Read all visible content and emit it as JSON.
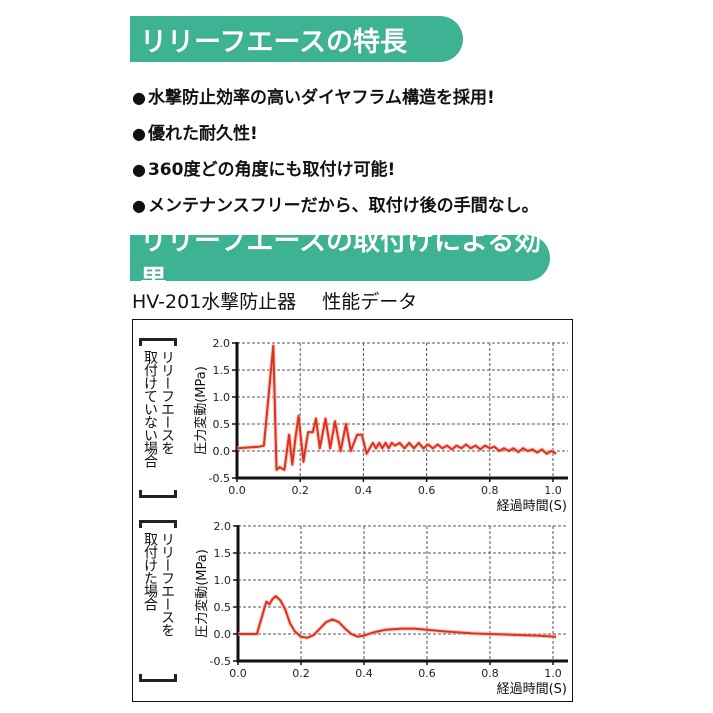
{
  "sections": {
    "features_title": "リリーフエースの特長",
    "effect_title": "リリーフエースの取付けによる効果"
  },
  "features": [
    "水撃防止効率の高いダイヤフラム構造を採用!",
    "優れた耐久性!",
    "360度どの角度にも取付け可能!",
    "メンテナンスフリーだから、取付け後の手間なし。"
  ],
  "bullet_glyph": "●",
  "subtitle": {
    "product": "HV-201水撃防止器",
    "data_label": "性能データ"
  },
  "colors": {
    "banner": "#3db394",
    "line": "#e0301e",
    "axis": "#111111",
    "grid": "#555555"
  },
  "chart_data": [
    {
      "type": "line",
      "title": "リリーフエースを取付けていない場合",
      "side_label_lines": [
        "リリーフエースを",
        "取付けていない場合"
      ],
      "xlabel": "経過時間(S)",
      "ylabel": "圧力変動(MPa)",
      "xlim": [
        0.0,
        1.0
      ],
      "ylim": [
        -0.5,
        2.0
      ],
      "xticks": [
        "0.0",
        "0.2",
        "0.4",
        "0.6",
        "0.8",
        "1.0"
      ],
      "yticks": [
        "2.0",
        "1.5",
        "1.0",
        "0.5",
        "0.0",
        "-0.5"
      ],
      "grid": true,
      "series": [
        {
          "name": "取付けていない場合",
          "x": [
            0.0,
            0.07,
            0.085,
            0.115,
            0.125,
            0.135,
            0.15,
            0.165,
            0.175,
            0.185,
            0.195,
            0.21,
            0.225,
            0.24,
            0.25,
            0.262,
            0.28,
            0.295,
            0.31,
            0.328,
            0.345,
            0.36,
            0.38,
            0.395,
            0.41,
            0.42,
            0.43,
            0.44,
            0.45,
            0.46,
            0.47,
            0.48,
            0.49,
            0.5,
            0.515,
            0.53,
            0.545,
            0.56,
            0.575,
            0.59,
            0.605,
            0.62,
            0.635,
            0.65,
            0.665,
            0.68,
            0.695,
            0.71,
            0.725,
            0.74,
            0.755,
            0.77,
            0.785,
            0.8,
            0.815,
            0.83,
            0.845,
            0.86,
            0.875,
            0.89,
            0.905,
            0.92,
            0.935,
            0.95,
            0.965,
            0.98,
            0.995,
            1.01
          ],
          "values": [
            0.05,
            0.08,
            0.1,
            1.95,
            -0.35,
            -0.3,
            -0.35,
            0.3,
            -0.25,
            0.25,
            0.65,
            -0.2,
            0.35,
            0.35,
            0.6,
            0.05,
            0.6,
            0.05,
            0.55,
            0.0,
            0.5,
            0.0,
            0.3,
            0.3,
            -0.05,
            0.05,
            0.15,
            0.05,
            0.15,
            0.05,
            0.15,
            0.05,
            0.15,
            0.1,
            0.15,
            0.05,
            0.15,
            0.05,
            0.15,
            0.05,
            0.12,
            0.05,
            0.12,
            0.05,
            0.1,
            0.03,
            0.1,
            0.05,
            0.12,
            0.05,
            0.1,
            0.03,
            0.1,
            0.05,
            0.08,
            0.0,
            0.05,
            0.0,
            0.05,
            -0.02,
            0.05,
            0.0,
            0.03,
            -0.03,
            0.03,
            -0.05,
            0.0,
            -0.05
          ]
        }
      ]
    },
    {
      "type": "line",
      "title": "リリーフエースを取付けた場合",
      "side_label_lines": [
        "リリーフエースを",
        "取付けた場合"
      ],
      "xlabel": "経過時間(S)",
      "ylabel": "圧力変動(MPa)",
      "xlim": [
        0.0,
        1.0
      ],
      "ylim": [
        -0.5,
        2.0
      ],
      "xticks": [
        "0.0",
        "0.2",
        "0.4",
        "0.6",
        "0.8",
        "1.0"
      ],
      "yticks": [
        "2.0",
        "1.5",
        "1.0",
        "0.5",
        "0.0",
        "-0.5"
      ],
      "grid": true,
      "series": [
        {
          "name": "取付けた場合",
          "x": [
            0.0,
            0.06,
            0.075,
            0.09,
            0.1,
            0.11,
            0.12,
            0.135,
            0.15,
            0.165,
            0.18,
            0.2,
            0.22,
            0.24,
            0.26,
            0.28,
            0.3,
            0.32,
            0.34,
            0.36,
            0.38,
            0.4,
            0.43,
            0.47,
            0.52,
            0.56,
            0.6,
            0.65,
            0.7,
            0.75,
            0.8,
            0.85,
            0.9,
            0.95,
            1.01
          ],
          "values": [
            0.0,
            0.0,
            0.3,
            0.6,
            0.55,
            0.65,
            0.7,
            0.62,
            0.45,
            0.2,
            0.05,
            -0.05,
            -0.07,
            -0.02,
            0.1,
            0.22,
            0.27,
            0.22,
            0.1,
            0.0,
            -0.05,
            -0.03,
            0.03,
            0.08,
            0.1,
            0.1,
            0.08,
            0.05,
            0.03,
            0.01,
            0.0,
            -0.01,
            -0.02,
            -0.03,
            -0.05
          ]
        }
      ]
    }
  ]
}
